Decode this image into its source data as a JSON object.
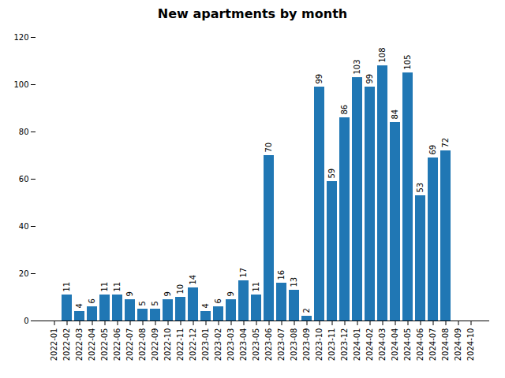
{
  "chart_data": {
    "type": "bar",
    "title": "New apartments by month",
    "categories": [
      "2022-01",
      "2022-02",
      "2022-03",
      "2022-04",
      "2022-05",
      "2022-06",
      "2022-07",
      "2022-08",
      "2022-09",
      "2022-10",
      "2022-11",
      "2022-12",
      "2023-01",
      "2023-02",
      "2023-03",
      "2023-04",
      "2023-05",
      "2023-06",
      "2023-07",
      "2023-08",
      "2023-09",
      "2023-10",
      "2023-11",
      "2023-12",
      "2024-01",
      "2024-02",
      "2024-03",
      "2024-04",
      "2024-05",
      "2024-06",
      "2024-07",
      "2024-08",
      "2024-09",
      "2024-10"
    ],
    "values": [
      0,
      11,
      4,
      6,
      11,
      11,
      9,
      5,
      5,
      9,
      10,
      14,
      4,
      6,
      9,
      17,
      11,
      70,
      16,
      13,
      2,
      99,
      59,
      86,
      103,
      99,
      108,
      84,
      105,
      53,
      69,
      72,
      0,
      0
    ],
    "value_labels": [
      null,
      "11",
      "4",
      "6",
      "11",
      "11",
      "9",
      "5",
      "5",
      "9",
      "10",
      "14",
      "4",
      "6",
      "9",
      "17",
      "11",
      "70",
      "16",
      "13",
      "2",
      "99",
      "59",
      "86",
      "103",
      "99",
      "108",
      "84",
      "105",
      "53",
      "69",
      "72",
      null,
      null
    ],
    "color": "#2077b4",
    "ylim": [
      0,
      120
    ],
    "yticks": [
      0,
      20,
      40,
      60,
      80,
      100,
      120
    ],
    "grid": false,
    "data_labels": true
  }
}
